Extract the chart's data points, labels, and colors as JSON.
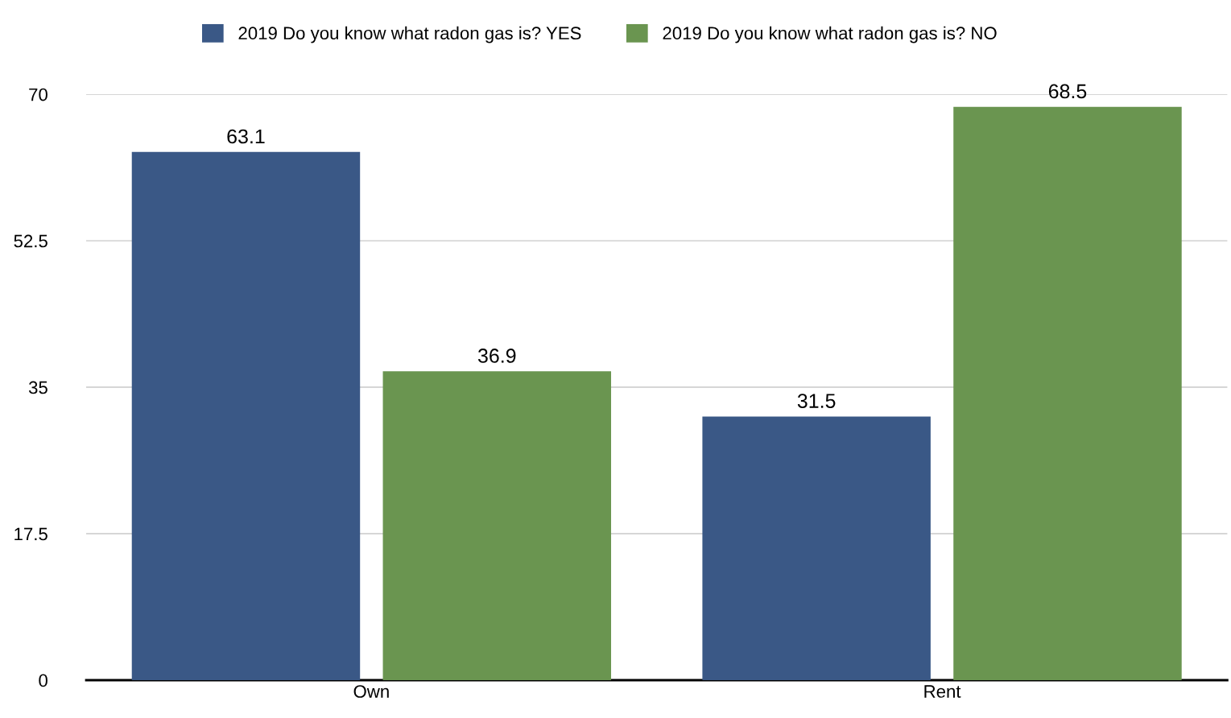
{
  "chart_data": {
    "type": "bar",
    "categories": [
      "Own",
      "Rent"
    ],
    "series": [
      {
        "name": "2019 Do you know what radon gas is? YES",
        "color": "#3a5886",
        "values": [
          63.1,
          31.5
        ]
      },
      {
        "name": "2019 Do you know what radon gas is? NO",
        "color": "#6a9550",
        "values": [
          36.9,
          68.5
        ]
      }
    ],
    "ylim": [
      0,
      70
    ],
    "yticks": [
      0,
      17.5,
      35,
      52.5,
      70
    ],
    "grid": "y",
    "legend": "top",
    "data_labels": true
  }
}
